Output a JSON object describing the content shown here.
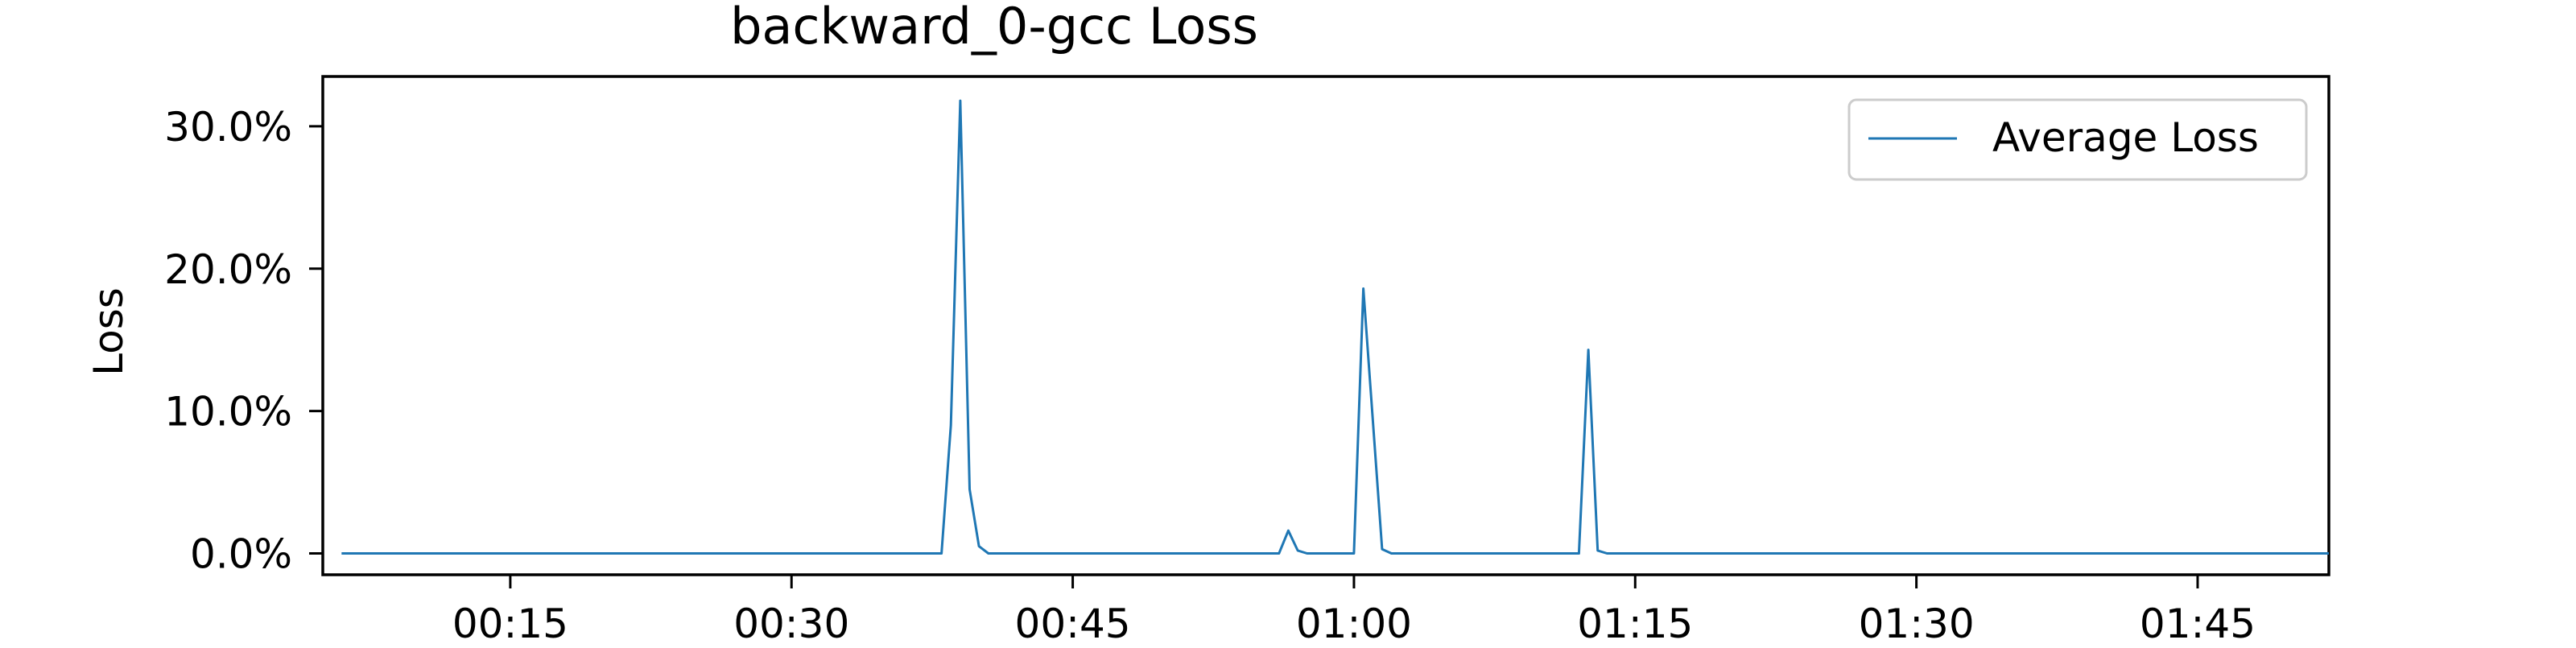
{
  "chart_data": {
    "type": "line",
    "title": "backward_0-gcc Loss",
    "xlabel": "",
    "ylabel": "Loss",
    "x_unit": "time (mm:ss)",
    "xlim": [
      "00:05",
      "01:52"
    ],
    "ylim": [
      -1.5,
      33.5
    ],
    "x_ticks": [
      "00:15",
      "00:30",
      "00:45",
      "01:00",
      "01:15",
      "01:30",
      "01:45"
    ],
    "y_ticks": [
      {
        "value": 0,
        "label": "0.0%"
      },
      {
        "value": 10,
        "label": "10.0%"
      },
      {
        "value": 20,
        "label": "20.0%"
      },
      {
        "value": 30,
        "label": "30.0%"
      }
    ],
    "grid": false,
    "legend": {
      "position": "top-right",
      "entries": [
        "Average Loss"
      ]
    },
    "series": [
      {
        "name": "Average Loss",
        "color": "#1f77b4",
        "points": [
          [
            "00:06",
            0
          ],
          [
            "00:38",
            0
          ],
          [
            "00:38.5",
            9.0
          ],
          [
            "00:39",
            31.8
          ],
          [
            "00:39.5",
            4.5
          ],
          [
            "00:40",
            0.5
          ],
          [
            "00:40.5",
            0
          ],
          [
            "00:56",
            0
          ],
          [
            "00:56.5",
            1.6
          ],
          [
            "00:57",
            0.2
          ],
          [
            "00:57.5",
            0
          ],
          [
            "01:00",
            0
          ],
          [
            "01:00.5",
            18.6
          ],
          [
            "01:01.5",
            0.3
          ],
          [
            "01:02",
            0
          ],
          [
            "01:12",
            0
          ],
          [
            "01:12.5",
            14.3
          ],
          [
            "01:13",
            0.2
          ],
          [
            "01:13.5",
            0
          ],
          [
            "01:52",
            0
          ]
        ]
      }
    ]
  }
}
